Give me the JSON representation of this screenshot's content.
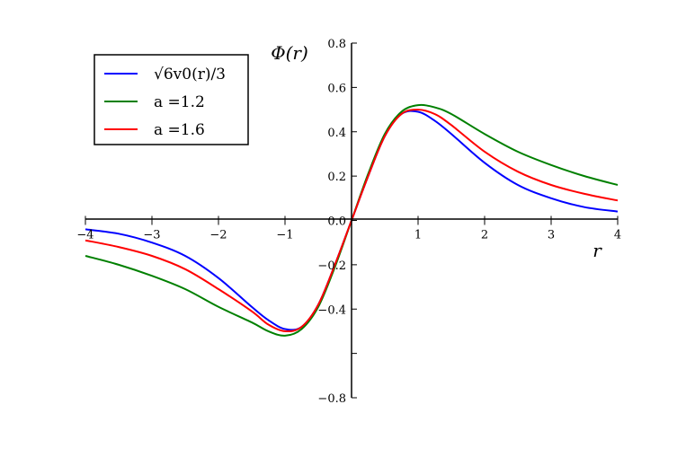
{
  "chart_data": {
    "type": "line",
    "title": "",
    "xlabel": "r",
    "ylabel": "Φ(r)",
    "xlim": [
      -4,
      4
    ],
    "ylim": [
      -0.8,
      0.8
    ],
    "xticks": [
      -4,
      -3,
      -2,
      -1,
      0,
      1,
      2,
      3,
      4
    ],
    "xtick_labels": [
      "−4",
      "−3",
      "−2",
      "−1",
      "",
      "1",
      "2",
      "3",
      "4"
    ],
    "yticks": [
      -0.8,
      -0.6,
      -0.4,
      -0.2,
      0.0,
      0.2,
      0.4,
      0.6,
      0.8
    ],
    "ytick_labels": [
      "−0.8",
      "",
      "−0.4",
      "−0.2",
      "0.0",
      "0.2",
      "0.4",
      "0.6",
      "0.8"
    ],
    "grid": false,
    "legend_position": "top-left",
    "x": [
      -4.0,
      -3.5,
      -3.0,
      -2.5,
      -2.0,
      -1.5,
      -1.25,
      -1.0,
      -0.75,
      -0.5,
      -0.25,
      0.0,
      0.25,
      0.5,
      0.75,
      1.0,
      1.25,
      1.5,
      2.0,
      2.5,
      3.0,
      3.5,
      4.0
    ],
    "series": [
      {
        "name": "√6v0(r)/3",
        "color": "#0000ff",
        "values": [
          -0.04,
          -0.06,
          -0.1,
          -0.16,
          -0.26,
          -0.39,
          -0.45,
          -0.49,
          -0.48,
          -0.38,
          -0.2,
          0.0,
          0.2,
          0.38,
          0.48,
          0.49,
          0.45,
          0.39,
          0.26,
          0.16,
          0.1,
          0.06,
          0.04
        ]
      },
      {
        "name": "a =1.2",
        "color": "#008000",
        "values": [
          -0.16,
          -0.2,
          -0.25,
          -0.31,
          -0.39,
          -0.46,
          -0.5,
          -0.52,
          -0.49,
          -0.39,
          -0.21,
          0.0,
          0.21,
          0.39,
          0.49,
          0.52,
          0.51,
          0.48,
          0.39,
          0.31,
          0.25,
          0.2,
          0.16
        ]
      },
      {
        "name": "a =1.6",
        "color": "#ff0000",
        "values": [
          -0.09,
          -0.12,
          -0.16,
          -0.22,
          -0.31,
          -0.41,
          -0.47,
          -0.5,
          -0.48,
          -0.38,
          -0.2,
          0.0,
          0.2,
          0.38,
          0.48,
          0.5,
          0.48,
          0.43,
          0.31,
          0.22,
          0.16,
          0.12,
          0.09
        ]
      }
    ]
  }
}
